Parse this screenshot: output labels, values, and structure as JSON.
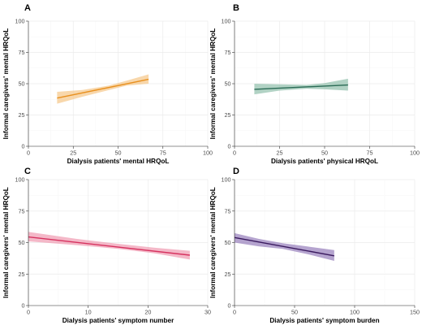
{
  "chart_data": [
    {
      "panel": "A",
      "type": "line",
      "xlabel": "Dialysis patients' mental HRQoL",
      "ylabel": "Informal caregivers' mental HRQoL",
      "xlim": [
        0,
        100
      ],
      "ylim": [
        0,
        100
      ],
      "xticks": [
        0,
        25,
        50,
        75,
        100
      ],
      "yticks": [
        0,
        25,
        50,
        75,
        100
      ],
      "line": {
        "x": [
          16,
          67
        ],
        "y": [
          38.5,
          53.5
        ]
      },
      "ci_band": {
        "x": [
          16,
          30,
          45,
          55,
          67
        ],
        "lower": [
          34,
          39.5,
          45,
          48.5,
          50
        ],
        "upper": [
          43.5,
          45,
          48.5,
          52.5,
          57.5
        ]
      },
      "color": "#E8901F",
      "band_color": "#F6C98F"
    },
    {
      "panel": "B",
      "type": "line",
      "xlabel": "Dialysis patients' physical HRQoL",
      "ylabel": "Informal caregivers' mental HRQoL",
      "xlim": [
        0,
        100
      ],
      "ylim": [
        0,
        100
      ],
      "xticks": [
        0,
        25,
        50,
        75,
        100
      ],
      "yticks": [
        0,
        25,
        50,
        75,
        100
      ],
      "line": {
        "x": [
          11,
          63
        ],
        "y": [
          45.5,
          49
        ]
      },
      "ci_band": {
        "x": [
          11,
          25,
          40,
          50,
          63
        ],
        "lower": [
          41.5,
          44.5,
          46,
          45.5,
          44.5
        ],
        "upper": [
          50,
          49.5,
          49,
          50.5,
          54
        ]
      },
      "color": "#2A6B55",
      "band_color": "#97C3B0"
    },
    {
      "panel": "C",
      "type": "line",
      "xlabel": "Dialysis patients' symptom number",
      "ylabel": "Informal caregivers' mental HRQoL",
      "xlim": [
        0,
        30
      ],
      "ylim": [
        0,
        100
      ],
      "xticks": [
        0,
        10,
        20,
        30
      ],
      "yticks": [
        0,
        25,
        50,
        75,
        100
      ],
      "line": {
        "x": [
          0,
          27
        ],
        "y": [
          54.5,
          40
        ]
      },
      "ci_band": {
        "x": [
          0,
          8,
          15,
          21,
          27
        ],
        "lower": [
          51,
          48,
          45,
          41.5,
          36.5
        ],
        "upper": [
          58.5,
          53,
          49,
          46,
          43.5
        ]
      },
      "color": "#D6325F",
      "band_color": "#F0A0B5"
    },
    {
      "panel": "D",
      "type": "line",
      "xlabel": "Dialysis patients' symptom burden",
      "ylabel": "Informal caregivers' mental HRQoL",
      "xlim": [
        0,
        150
      ],
      "ylim": [
        0,
        100
      ],
      "xticks": [
        0,
        50,
        100,
        150
      ],
      "yticks": [
        0,
        25,
        50,
        75,
        100
      ],
      "line": {
        "x": [
          0,
          83
        ],
        "y": [
          54,
          39.5
        ]
      },
      "ci_band": {
        "x": [
          0,
          20,
          40,
          60,
          83
        ],
        "lower": [
          50,
          47,
          45,
          41,
          35.5
        ],
        "upper": [
          57.5,
          53,
          49.5,
          47,
          44
        ]
      },
      "color": "#3A1A5E",
      "band_color": "#9C86BF"
    }
  ]
}
